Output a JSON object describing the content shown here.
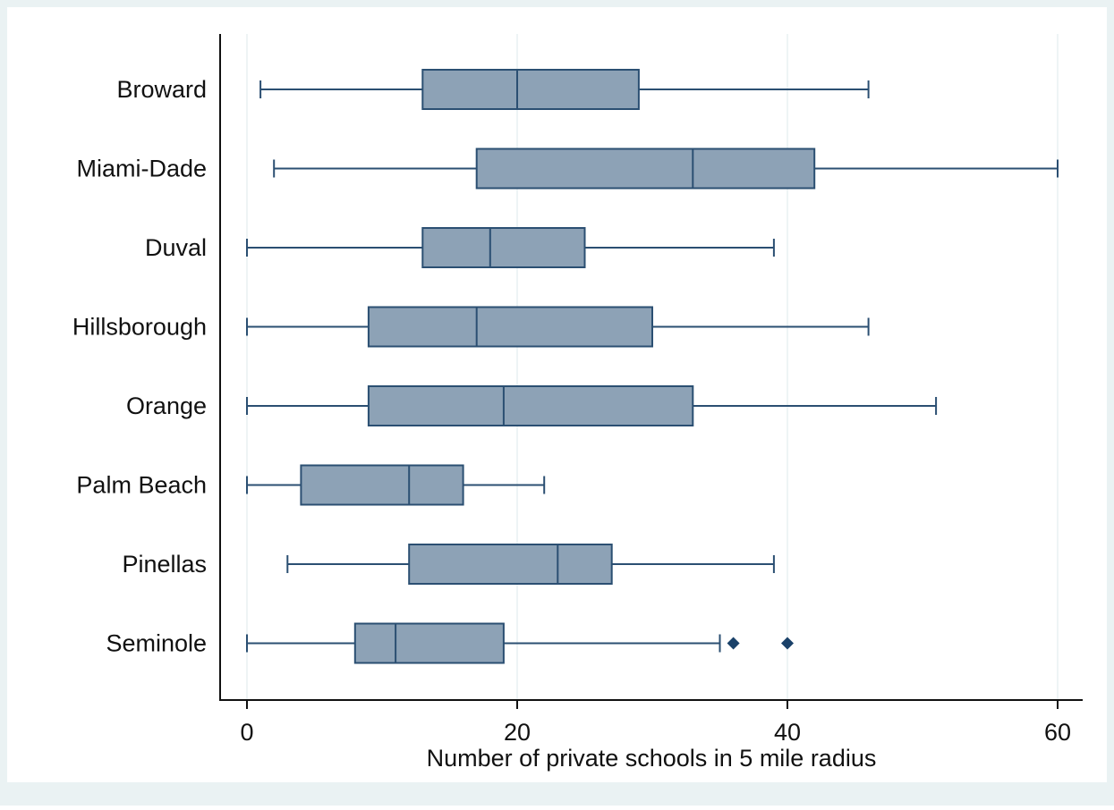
{
  "chart_data": {
    "type": "boxplot",
    "xlabel": "Number of private schools in 5 mile radius",
    "xlim": [
      0,
      60
    ],
    "xticks": [
      "0",
      "20",
      "40",
      "60"
    ],
    "grid": true,
    "orientation": "horizontal",
    "colors": {
      "outer_background": "#eaf2f3",
      "plot_background": "#ffffff",
      "box_fill": "#8da2b6",
      "line": "#2b4f72",
      "grid": "#e2ecee",
      "outlier": "#1a4169"
    },
    "categories": [
      "Broward",
      "Miami-Dade",
      "Duval",
      "Hillsborough",
      "Orange",
      "Palm Beach",
      "Pinellas",
      "Seminole"
    ],
    "boxes": [
      {
        "min": 1,
        "q1": 13,
        "median": 20,
        "q3": 29,
        "max": 46,
        "outliers": []
      },
      {
        "min": 2,
        "q1": 17,
        "median": 33,
        "q3": 42,
        "max": 60,
        "outliers": []
      },
      {
        "min": 0,
        "q1": 13,
        "median": 18,
        "q3": 25,
        "max": 39,
        "outliers": []
      },
      {
        "min": 0,
        "q1": 9,
        "median": 17,
        "q3": 30,
        "max": 46,
        "outliers": []
      },
      {
        "min": 0,
        "q1": 9,
        "median": 19,
        "q3": 33,
        "max": 51,
        "outliers": []
      },
      {
        "min": 0,
        "q1": 4,
        "median": 12,
        "q3": 16,
        "max": 22,
        "outliers": []
      },
      {
        "min": 3,
        "q1": 12,
        "median": 23,
        "q3": 27,
        "max": 39,
        "outliers": []
      },
      {
        "min": 0,
        "q1": 8,
        "median": 11,
        "q3": 19,
        "max": 35,
        "outliers": [
          36,
          40
        ]
      }
    ]
  }
}
